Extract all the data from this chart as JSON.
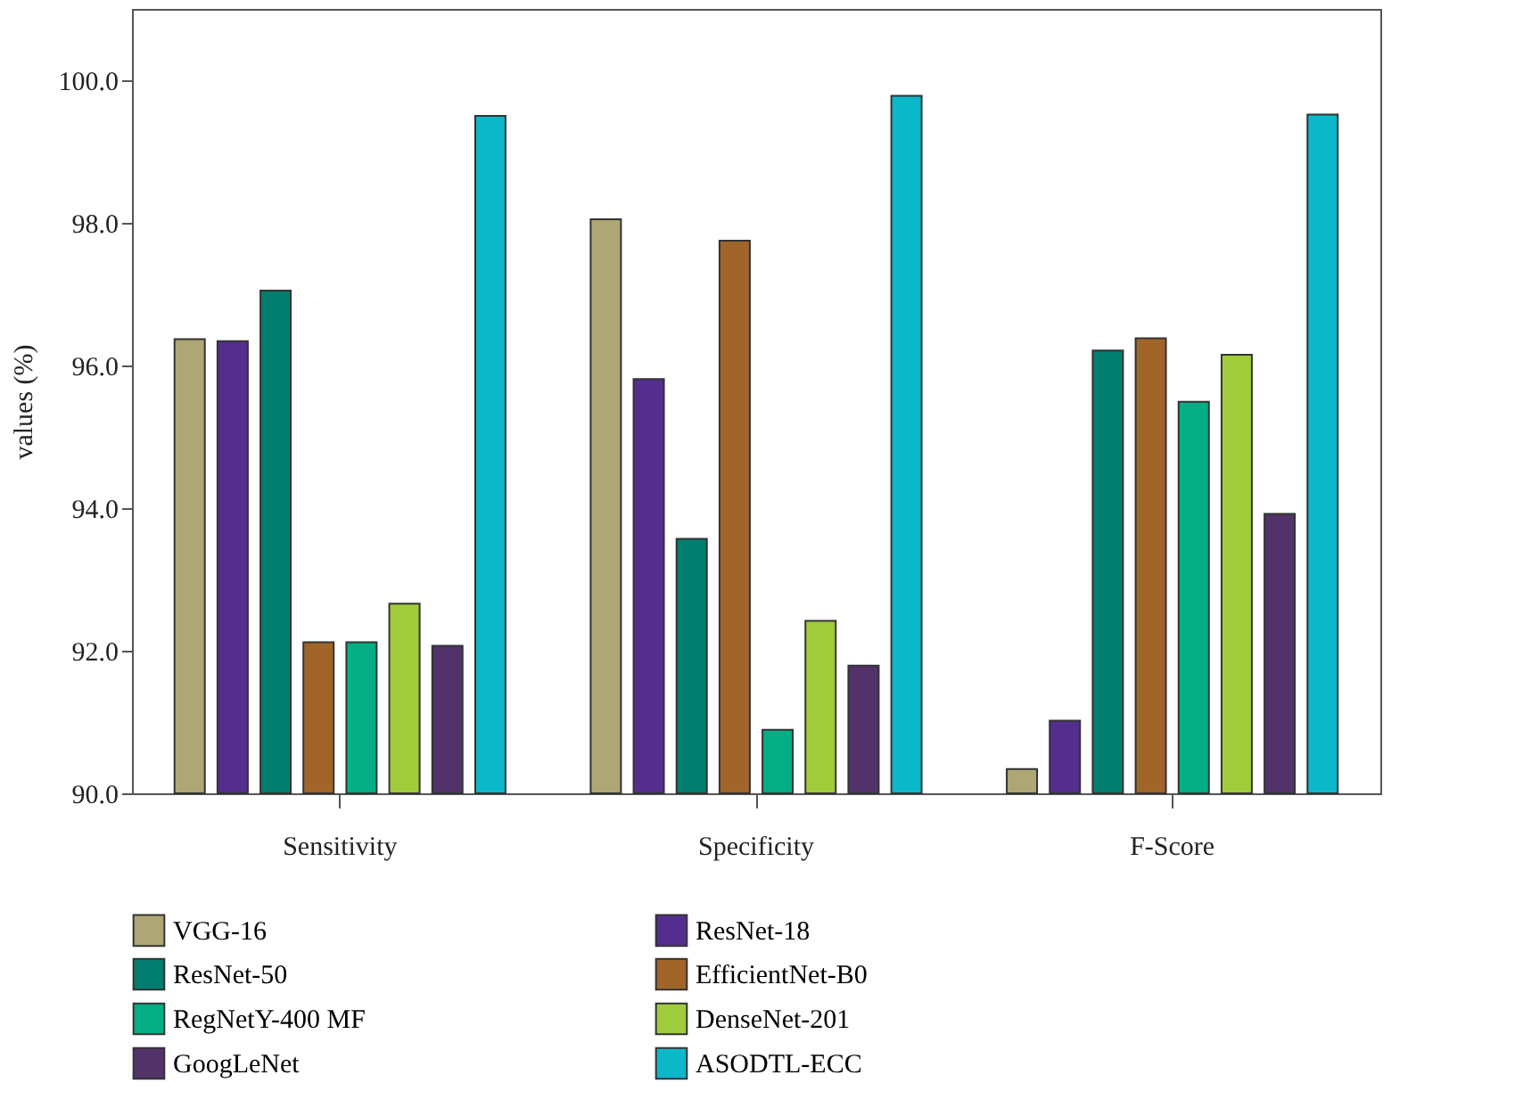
{
  "chart_data": {
    "type": "bar",
    "ylabel": "values (%)",
    "categories": [
      "Sensitivity",
      "Specificity",
      "F-Score"
    ],
    "series": [
      {
        "name": "VGG-16",
        "color": "#aea775",
        "values": [
          96.37,
          98.05,
          90.34
        ]
      },
      {
        "name": "ResNet-18",
        "color": "#532e8f",
        "values": [
          96.34,
          95.81,
          91.02
        ]
      },
      {
        "name": "ResNet-50",
        "color": "#027e6f",
        "values": [
          97.05,
          93.57,
          96.21
        ]
      },
      {
        "name": "EfficientNet-B0",
        "color": "#a1652a",
        "values": [
          92.12,
          97.75,
          96.38
        ]
      },
      {
        "name": "RegNetY-400 MF",
        "color": "#03ae84",
        "values": [
          92.12,
          90.89,
          95.49
        ]
      },
      {
        "name": "DenseNet-201",
        "color": "#a0cc3b",
        "values": [
          92.66,
          92.42,
          96.15
        ]
      },
      {
        "name": "GoogLeNet",
        "color": "#53326a",
        "values": [
          92.07,
          91.79,
          93.92
        ]
      },
      {
        "name": "ASODTL-ECC",
        "color": "#0cb7ca",
        "values": [
          99.5,
          99.78,
          99.52
        ]
      }
    ],
    "ylim": [
      90,
      101
    ],
    "yticks": [
      {
        "value": 90,
        "label": "90.0"
      },
      {
        "value": 92,
        "label": "92.0"
      },
      {
        "value": 94,
        "label": "94.0"
      },
      {
        "value": 96,
        "label": "96.0"
      },
      {
        "value": 98,
        "label": "98.0"
      },
      {
        "value": 100,
        "label": "100.0"
      }
    ],
    "grid": false,
    "legend": "bottom"
  }
}
